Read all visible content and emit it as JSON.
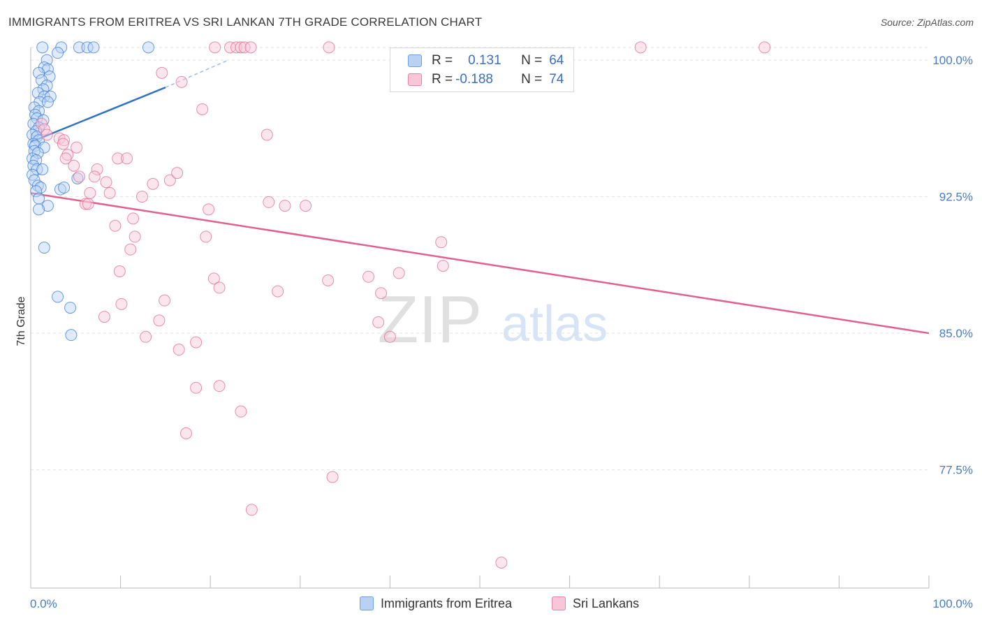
{
  "title": "IMMIGRANTS FROM ERITREA VS SRI LANKAN 7TH GRADE CORRELATION CHART",
  "source": "Source: ZipAtlas.com",
  "watermark": {
    "zip": "ZIP",
    "atlas": "atlas"
  },
  "legend": {
    "r_label": "R =",
    "n_label": "N =",
    "rows": [
      {
        "name": "Immigrants from Eritrea",
        "r": "0.131",
        "n": "64",
        "color": "#6fa0de",
        "fill": "#b9d2f3"
      },
      {
        "name": "Sri Lankans",
        "r": "-0.188",
        "n": "74",
        "color": "#e983a5",
        "fill": "#f8c7d7"
      }
    ]
  },
  "chart_data": {
    "type": "scatter",
    "title": "IMMIGRANTS FROM ERITREA VS SRI LANKAN 7TH GRADE CORRELATION CHART",
    "xlabel": "",
    "ylabel": "7th Grade",
    "xlim": [
      0,
      100
    ],
    "ylim": [
      71.0,
      101.0
    ],
    "x_tick_labels": [
      "0.0%",
      "100.0%"
    ],
    "y_ticks": [
      {
        "value": 100.0,
        "label": "100.0%"
      },
      {
        "value": 92.5,
        "label": "92.5%"
      },
      {
        "value": 85.0,
        "label": "85.0%"
      },
      {
        "value": 77.5,
        "label": "77.5%"
      }
    ],
    "grid": true,
    "series": [
      {
        "name": "Immigrants from Eritrea",
        "color": "#3a7bd5",
        "fill": "#b9d2f3",
        "trend": {
          "x0": 0,
          "y0": 95.5,
          "x1": 15,
          "y1": 98.5,
          "dashed_to_x": 22,
          "dashed_to_y": 100.0
        },
        "points": [
          [
            1.3,
            100.7
          ],
          [
            3.4,
            100.7
          ],
          [
            5.4,
            100.7
          ],
          [
            6.3,
            100.7
          ],
          [
            7.0,
            100.7
          ],
          [
            13.1,
            100.7
          ],
          [
            3.0,
            100.4
          ],
          [
            1.8,
            100.0
          ],
          [
            1.5,
            99.6
          ],
          [
            1.9,
            99.5
          ],
          [
            0.9,
            99.3
          ],
          [
            2.1,
            99.1
          ],
          [
            1.2,
            98.9
          ],
          [
            1.8,
            98.6
          ],
          [
            1.4,
            98.4
          ],
          [
            0.8,
            98.2
          ],
          [
            1.5,
            98.0
          ],
          [
            2.2,
            98.0
          ],
          [
            1.0,
            97.7
          ],
          [
            1.9,
            97.7
          ],
          [
            0.4,
            97.4
          ],
          [
            0.9,
            97.2
          ],
          [
            0.5,
            97.0
          ],
          [
            0.7,
            96.8
          ],
          [
            1.4,
            96.7
          ],
          [
            0.3,
            96.5
          ],
          [
            0.9,
            96.3
          ],
          [
            0.6,
            96.1
          ],
          [
            0.2,
            95.9
          ],
          [
            0.7,
            95.8
          ],
          [
            0.9,
            95.6
          ],
          [
            0.3,
            95.4
          ],
          [
            0.5,
            95.3
          ],
          [
            1.5,
            95.2
          ],
          [
            0.4,
            95.0
          ],
          [
            0.8,
            94.9
          ],
          [
            0.2,
            94.6
          ],
          [
            0.6,
            94.5
          ],
          [
            0.3,
            94.2
          ],
          [
            0.7,
            94.0
          ],
          [
            1.3,
            94.0
          ],
          [
            0.2,
            93.7
          ],
          [
            0.4,
            93.4
          ],
          [
            0.8,
            93.1
          ],
          [
            1.1,
            93.0
          ],
          [
            0.6,
            92.8
          ],
          [
            3.3,
            92.9
          ],
          [
            3.7,
            93.0
          ],
          [
            5.2,
            93.5
          ],
          [
            0.9,
            92.4
          ],
          [
            1.9,
            92.0
          ],
          [
            0.9,
            91.8
          ],
          [
            1.5,
            89.7
          ],
          [
            3.0,
            87.0
          ],
          [
            4.4,
            86.4
          ],
          [
            4.5,
            84.9
          ]
        ]
      },
      {
        "name": "Sri Lankans",
        "color": "#e06a94",
        "fill": "#f8c7d7",
        "trend": {
          "x0": 0,
          "y0": 92.7,
          "x1": 100,
          "y1": 85.0
        },
        "points": [
          [
            20.5,
            100.7
          ],
          [
            22.2,
            100.7
          ],
          [
            22.9,
            100.7
          ],
          [
            23.4,
            100.7
          ],
          [
            23.8,
            100.7
          ],
          [
            24.5,
            100.7
          ],
          [
            33.2,
            100.7
          ],
          [
            67.9,
            100.7
          ],
          [
            81.7,
            100.7
          ],
          [
            14.6,
            99.3
          ],
          [
            16.8,
            98.8
          ],
          [
            19.1,
            97.3
          ],
          [
            1.2,
            96.5
          ],
          [
            1.5,
            96.2
          ],
          [
            1.8,
            95.9
          ],
          [
            3.2,
            95.7
          ],
          [
            3.7,
            95.6
          ],
          [
            3.6,
            95.4
          ],
          [
            26.3,
            95.9
          ],
          [
            5.1,
            95.2
          ],
          [
            4.1,
            94.8
          ],
          [
            3.9,
            94.6
          ],
          [
            4.8,
            94.2
          ],
          [
            7.4,
            94.0
          ],
          [
            9.7,
            94.6
          ],
          [
            10.7,
            94.6
          ],
          [
            5.4,
            93.6
          ],
          [
            7.1,
            93.6
          ],
          [
            8.4,
            93.3
          ],
          [
            13.6,
            93.2
          ],
          [
            15.5,
            93.4
          ],
          [
            16.3,
            93.8
          ],
          [
            6.6,
            92.7
          ],
          [
            8.8,
            92.7
          ],
          [
            12.4,
            92.5
          ],
          [
            6.1,
            92.1
          ],
          [
            6.4,
            92.1
          ],
          [
            26.5,
            92.2
          ],
          [
            28.3,
            92.0
          ],
          [
            30.6,
            92.0
          ],
          [
            19.8,
            91.8
          ],
          [
            11.4,
            91.3
          ],
          [
            9.4,
            90.9
          ],
          [
            11.6,
            90.3
          ],
          [
            19.5,
            90.3
          ],
          [
            11.1,
            89.6
          ],
          [
            45.7,
            90.0
          ],
          [
            9.9,
            88.4
          ],
          [
            45.9,
            88.7
          ],
          [
            41.0,
            88.3
          ],
          [
            20.4,
            88.0
          ],
          [
            33.1,
            87.9
          ],
          [
            37.6,
            88.1
          ],
          [
            21.0,
            87.5
          ],
          [
            27.5,
            87.3
          ],
          [
            39.0,
            87.2
          ],
          [
            14.9,
            86.8
          ],
          [
            10.1,
            86.6
          ],
          [
            8.2,
            85.9
          ],
          [
            14.3,
            85.7
          ],
          [
            38.7,
            85.6
          ],
          [
            12.8,
            84.8
          ],
          [
            16.5,
            84.1
          ],
          [
            18.4,
            84.5
          ],
          [
            40.0,
            84.8
          ],
          [
            18.4,
            82.0
          ],
          [
            21.0,
            82.1
          ],
          [
            23.4,
            80.7
          ],
          [
            17.3,
            79.5
          ],
          [
            33.6,
            77.1
          ],
          [
            24.6,
            75.3
          ],
          [
            52.4,
            72.4
          ]
        ]
      }
    ]
  }
}
